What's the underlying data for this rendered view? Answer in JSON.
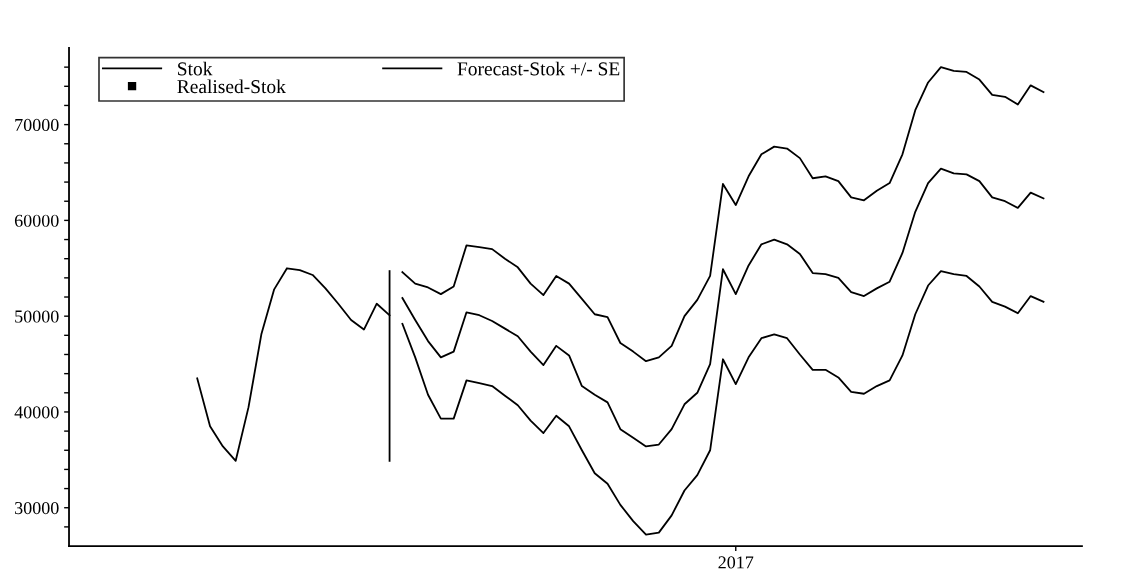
{
  "chart_data": {
    "type": "line",
    "categories": [
      null,
      null,
      null,
      null,
      null,
      null,
      null,
      null,
      null,
      null,
      null,
      null,
      null,
      null,
      null,
      null,
      null,
      null,
      null,
      null,
      null,
      null,
      null,
      null,
      null,
      null,
      null,
      null,
      null,
      null,
      null,
      null,
      null,
      null,
      null,
      null,
      null,
      null,
      null,
      null,
      null,
      null,
      null,
      null,
      null,
      null,
      null,
      null,
      null,
      null,
      null,
      null,
      "2017",
      null,
      null,
      null,
      null,
      null,
      null,
      null,
      null,
      null,
      null,
      null,
      null,
      null,
      null,
      null,
      null,
      null,
      null,
      null,
      null,
      null,
      null,
      null,
      null,
      null,
      null,
      null
    ],
    "ylim": [
      26000,
      78000
    ],
    "yticks": [
      {
        "value": 28000,
        "label": null
      },
      {
        "value": 30000,
        "label": "30000"
      },
      {
        "value": 32000,
        "label": null
      },
      {
        "value": 34000,
        "label": null
      },
      {
        "value": 36000,
        "label": null
      },
      {
        "value": 38000,
        "label": null
      },
      {
        "value": 40000,
        "label": "40000"
      },
      {
        "value": 42000,
        "label": null
      },
      {
        "value": 44000,
        "label": null
      },
      {
        "value": 46000,
        "label": null
      },
      {
        "value": 48000,
        "label": null
      },
      {
        "value": 50000,
        "label": "50000"
      },
      {
        "value": 52000,
        "label": null
      },
      {
        "value": 54000,
        "label": null
      },
      {
        "value": 56000,
        "label": null
      },
      {
        "value": 58000,
        "label": null
      },
      {
        "value": 60000,
        "label": "60000"
      },
      {
        "value": 62000,
        "label": null
      },
      {
        "value": 64000,
        "label": null
      },
      {
        "value": 66000,
        "label": null
      },
      {
        "value": 68000,
        "label": null
      },
      {
        "value": 70000,
        "label": "70000"
      },
      {
        "value": 72000,
        "label": null
      },
      {
        "value": 74000,
        "label": null
      },
      {
        "value": 76000,
        "label": null
      }
    ],
    "grid": false,
    "legend": "top left",
    "marker": "none",
    "line_style": "solid",
    "series": [
      {
        "name": "Stok",
        "color": "#000000",
        "values": [
          null,
          null,
          null,
          null,
          null,
          null,
          null,
          null,
          null,
          null,
          43500,
          38500,
          36400,
          34900,
          40500,
          48100,
          52800,
          55000,
          54800,
          54300,
          52900,
          51300,
          49600,
          48600,
          51300,
          50100,
          null,
          null,
          null,
          null,
          null,
          null,
          null,
          null,
          null,
          null,
          null,
          null,
          null,
          null,
          null,
          null,
          null,
          null,
          null,
          null,
          null,
          null,
          null,
          null,
          null,
          null,
          null,
          null,
          null,
          null,
          null,
          null,
          null,
          null,
          null,
          null,
          null,
          null,
          null,
          null,
          null,
          null,
          null,
          null,
          null,
          null,
          null,
          null,
          null,
          null,
          null,
          null,
          null,
          null
        ],
        "errors": [
          null,
          null,
          null,
          null,
          null,
          null,
          null,
          null,
          null,
          null,
          null,
          null,
          null,
          null,
          null,
          null,
          null,
          null,
          null,
          null,
          null,
          null,
          null,
          null,
          null,
          [
            34800,
            54800
          ],
          null,
          null,
          null,
          null,
          null,
          null,
          null,
          null,
          null,
          null,
          null,
          null,
          null,
          null,
          null,
          null,
          null,
          null,
          null,
          null,
          null,
          null,
          null,
          null,
          null,
          null,
          null,
          null,
          null,
          null,
          null,
          null,
          null,
          null,
          null,
          null,
          null,
          null,
          null,
          null,
          null,
          null,
          null,
          null,
          null,
          null,
          null,
          null,
          null,
          null,
          null,
          null,
          null,
          null
        ]
      },
      {
        "name": "Realised-Stok",
        "type": "scatter",
        "marker": "square",
        "color": "#000000",
        "values": [
          null,
          null,
          null,
          null,
          null,
          null,
          null,
          null,
          null,
          null,
          null,
          null,
          null,
          null,
          null,
          null,
          null,
          null,
          null,
          null,
          null,
          null,
          null,
          null,
          null,
          null,
          null,
          null,
          null,
          null,
          null,
          null,
          null,
          null,
          null,
          null,
          null,
          null,
          null,
          null,
          null,
          null,
          null,
          null,
          null,
          null,
          null,
          null,
          null,
          null,
          null,
          null,
          null,
          null,
          null,
          null,
          null,
          null,
          null,
          null,
          null,
          null,
          null,
          null,
          null,
          null,
          null,
          null,
          null,
          null,
          null,
          null,
          null,
          null,
          null,
          null,
          null,
          null,
          null,
          null
        ]
      },
      {
        "name": "Forecast-Stok +/- SE",
        "color": "#000000",
        "values": [
          null,
          null,
          null,
          null,
          null,
          null,
          null,
          null,
          null,
          null,
          null,
          null,
          null,
          null,
          null,
          null,
          null,
          null,
          null,
          null,
          null,
          null,
          null,
          null,
          null,
          null,
          51900,
          49600,
          47400,
          45700,
          46300,
          50400,
          50100,
          49500,
          48700,
          47900,
          46300,
          44900,
          46900,
          45900,
          42700,
          41800,
          41000,
          38200,
          37300,
          36400,
          36600,
          38200,
          40800,
          42000,
          45000,
          54900,
          52300,
          55300,
          57500,
          58000,
          57500,
          56500,
          54500,
          54400,
          54000,
          52500,
          52100,
          52900,
          53600,
          56600,
          60900,
          63900,
          65400,
          64900,
          64800,
          64100,
          62400,
          62000,
          61300,
          62900,
          62300,
          null,
          null,
          null
        ]
      },
      {
        "color": "#000000",
        "values": [
          null,
          null,
          null,
          null,
          null,
          null,
          null,
          null,
          null,
          null,
          null,
          null,
          null,
          null,
          null,
          null,
          null,
          null,
          null,
          null,
          null,
          null,
          null,
          null,
          null,
          null,
          54600,
          53400,
          53000,
          52300,
          53100,
          57400,
          57200,
          57000,
          56000,
          55100,
          53400,
          52200,
          54200,
          53400,
          51800,
          50200,
          49900,
          47200,
          46300,
          45300,
          45700,
          46900,
          50000,
          51700,
          54200,
          63800,
          61600,
          64600,
          66900,
          67700,
          67500,
          66500,
          64400,
          64600,
          64100,
          62400,
          62100,
          63100,
          63900,
          66900,
          71500,
          74400,
          76000,
          75600,
          75500,
          74700,
          73100,
          72900,
          72100,
          74100,
          73400,
          null,
          null,
          null
        ]
      },
      {
        "color": "#000000",
        "values": [
          null,
          null,
          null,
          null,
          null,
          null,
          null,
          null,
          null,
          null,
          null,
          null,
          null,
          null,
          null,
          null,
          null,
          null,
          null,
          null,
          null,
          null,
          null,
          null,
          null,
          null,
          49200,
          45700,
          41800,
          39300,
          39300,
          43300,
          43000,
          42700,
          41700,
          40700,
          39100,
          37800,
          39600,
          38500,
          36000,
          33600,
          32500,
          30300,
          28600,
          27200,
          27400,
          29200,
          31800,
          33400,
          36000,
          45500,
          42900,
          45700,
          47700,
          48100,
          47700,
          46000,
          44400,
          44400,
          43600,
          42100,
          41900,
          42700,
          43300,
          45900,
          50200,
          53200,
          54700,
          54400,
          54200,
          53100,
          51500,
          51000,
          50300,
          52100,
          51500,
          null,
          null,
          null
        ]
      }
    ]
  }
}
